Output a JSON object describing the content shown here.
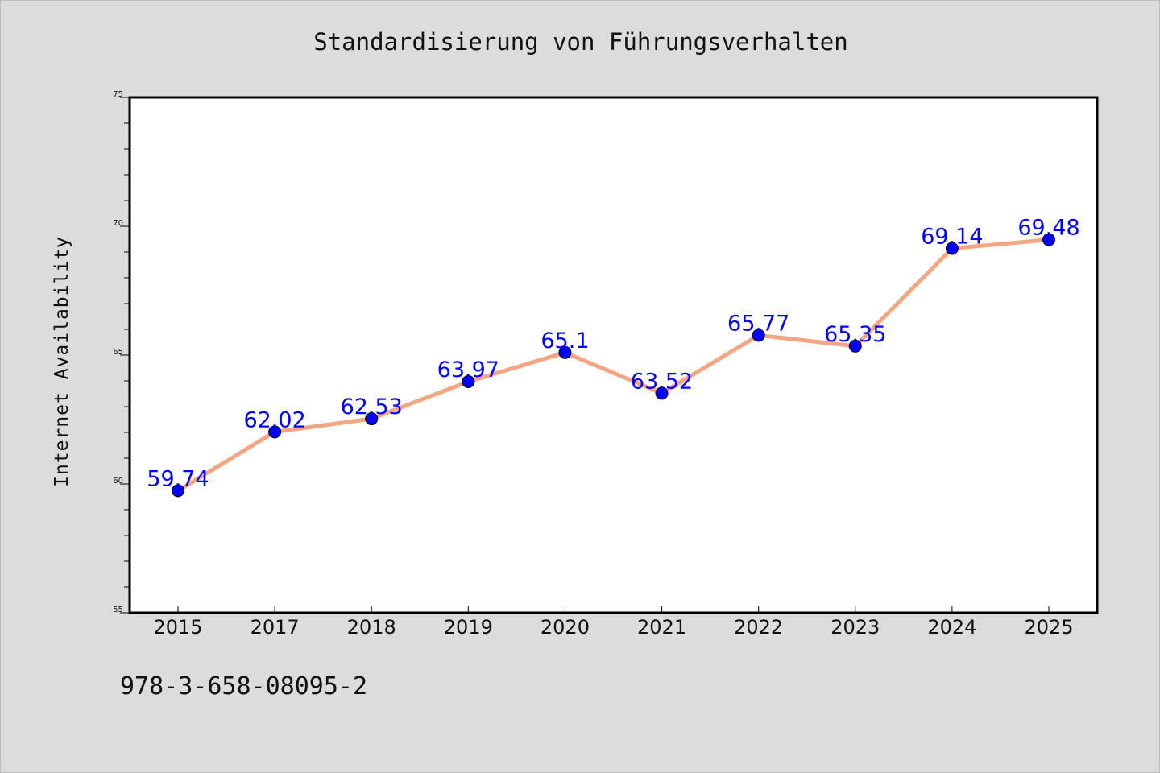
{
  "chart_data": {
    "type": "line",
    "title": "Standardisierung von Führungsverhalten",
    "xlabel": "",
    "ylabel": "Internet Availability",
    "categories": [
      "2015",
      "2017",
      "2018",
      "2019",
      "2020",
      "2021",
      "2022",
      "2023",
      "2024",
      "2025"
    ],
    "series": [
      {
        "values": [
          59.74,
          62.02,
          62.53,
          63.97,
          65.1,
          63.52,
          65.77,
          65.35,
          69.14,
          69.48
        ],
        "data_labels": [
          "59.74",
          "62.02",
          "62.53",
          "63.97",
          "65.1",
          "63.52",
          "65.77",
          "65.35",
          "69.14",
          "69.48"
        ],
        "line_color": "#f4a582",
        "marker_color": "#0000ff"
      }
    ],
    "ylim": [
      55,
      75
    ],
    "y_ticks": [
      "55",
      "60",
      "65",
      "70",
      "75"
    ],
    "grid": false,
    "legend": "none"
  },
  "footer": {
    "code": "978-3-658-08095-2"
  },
  "colors": {
    "background": "#dcdcdc",
    "plot_background": "#ffffff",
    "line": "#f4a582",
    "marker": "#0000ff",
    "data_label": "#0000ff"
  }
}
